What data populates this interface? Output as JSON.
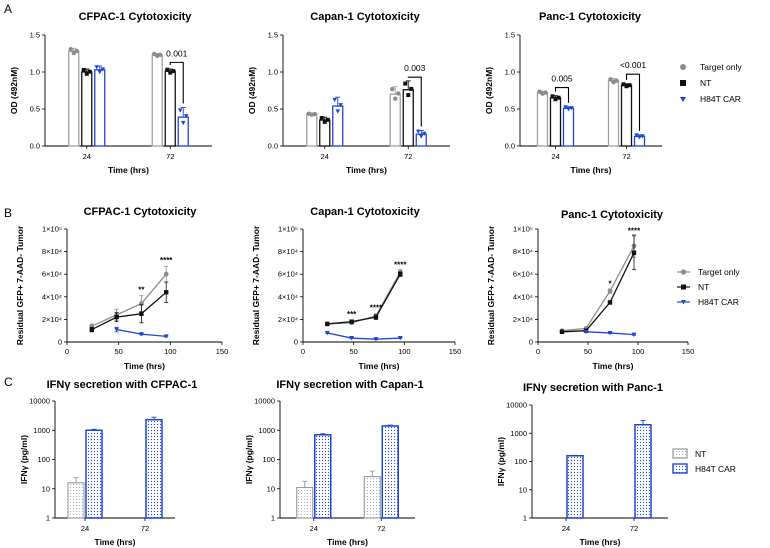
{
  "colors": {
    "target": "#8c8c8c",
    "nt": "#111111",
    "car": "#1f45d4",
    "nt_bar": "#9a9a9a"
  },
  "panels": {
    "a": "A",
    "b": "B",
    "c": "C"
  },
  "legend_ab": {
    "target": "Target only",
    "nt": "NT",
    "car": "H84T CAR"
  },
  "legend_c": {
    "nt": "NT",
    "car": "H84T CAR"
  },
  "chart_data": [
    {
      "id": "A1",
      "type": "bar",
      "title": "CFPAC-1 Cytotoxicity",
      "xlabel": "Time (hrs)",
      "ylabel": "OD (492nM)",
      "categories": [
        "24",
        "72"
      ],
      "ylim": [
        0,
        1.5
      ],
      "yticks": [
        "0.0",
        "0.5",
        "1.0",
        "1.5"
      ],
      "series": [
        {
          "name": "Target only",
          "values": [
            1.28,
            1.23
          ],
          "err": [
            0.04,
            0.02
          ]
        },
        {
          "name": "NT",
          "values": [
            1.0,
            1.01
          ],
          "err": [
            0.04,
            0.03
          ]
        },
        {
          "name": "H84T CAR",
          "values": [
            1.03,
            0.39
          ],
          "err": [
            0.05,
            0.13
          ]
        }
      ],
      "annotations": [
        {
          "text": "0.001",
          "category": "72",
          "y": 1.13
        }
      ]
    },
    {
      "id": "A2",
      "type": "bar",
      "title": "Capan-1 Cytotoxicity",
      "xlabel": "Time (hrs)",
      "ylabel": "OD (492nM)",
      "categories": [
        "24",
        "72"
      ],
      "ylim": [
        0,
        1.5
      ],
      "yticks": [
        "0.0",
        "0.5",
        "1.0",
        "1.5"
      ],
      "series": [
        {
          "name": "Target only",
          "values": [
            0.43,
            0.7
          ],
          "err": [
            0.01,
            0.1
          ]
        },
        {
          "name": "NT",
          "values": [
            0.35,
            0.76
          ],
          "err": [
            0.04,
            0.12
          ]
        },
        {
          "name": "H84T CAR",
          "values": [
            0.54,
            0.16
          ],
          "err": [
            0.12,
            0.05
          ]
        }
      ],
      "annotations": [
        {
          "text": "0.003",
          "category": "72",
          "y": 0.93
        }
      ]
    },
    {
      "id": "A3",
      "type": "bar",
      "title": "Panc-1 Cytotoxicity",
      "xlabel": "Time (hrs)",
      "ylabel": "OD (492nM)",
      "categories": [
        "24",
        "72"
      ],
      "ylim": [
        0,
        1.5
      ],
      "yticks": [
        "0.0",
        "0.5",
        "1.0",
        "1.5"
      ],
      "series": [
        {
          "name": "Target only",
          "values": [
            0.72,
            0.88
          ],
          "err": [
            0.02,
            0.03
          ]
        },
        {
          "name": "NT",
          "values": [
            0.65,
            0.82
          ],
          "err": [
            0.03,
            0.02
          ]
        },
        {
          "name": "H84T CAR",
          "values": [
            0.51,
            0.13
          ],
          "err": [
            0.02,
            0.02
          ]
        }
      ],
      "annotations": [
        {
          "text": "0.005",
          "category": "24",
          "y": 0.79
        },
        {
          "text": "<0.001",
          "category": "72",
          "y": 0.97
        }
      ]
    },
    {
      "id": "B1",
      "type": "line",
      "title": "CFPAC-1 Cytotoxicity",
      "xlabel": "Time (hrs)",
      "ylabel": "Residual GFP+ 7-AAD- Tumor",
      "x": [
        24,
        48,
        72,
        96
      ],
      "xlim": [
        0,
        150
      ],
      "xticks": [
        "0",
        "50",
        "100",
        "150"
      ],
      "ylim": [
        0,
        100000
      ],
      "yticks": [
        "0",
        "2×10⁴",
        "4×10⁴",
        "6×10⁴",
        "8×10⁴",
        "1×10⁵"
      ],
      "series": [
        {
          "name": "Target only",
          "values": [
            14000,
            24000,
            34000,
            60000
          ],
          "err": [
            2000,
            5000,
            7000,
            7000
          ]
        },
        {
          "name": "NT",
          "values": [
            11000,
            22000,
            25000,
            44000
          ],
          "err": [
            2000,
            4000,
            8000,
            9000
          ]
        },
        {
          "name": "H84T CAR",
          "values": [
            null,
            11000,
            7000,
            5000
          ],
          "err": [
            0,
            2000,
            800,
            600
          ]
        }
      ],
      "annotations": [
        {
          "text": "**",
          "x": 72,
          "y": 44000
        },
        {
          "text": "****",
          "x": 96,
          "y": 70000
        }
      ]
    },
    {
      "id": "B2",
      "type": "line",
      "title": "Capan-1 Cytotoxicity",
      "xlabel": "Time (hrs)",
      "ylabel": "Residual GFP+ 7-AAD- Tumor",
      "x": [
        24,
        48,
        72,
        96
      ],
      "xlim": [
        0,
        150
      ],
      "xticks": [
        "0",
        "50",
        "100",
        "150"
      ],
      "ylim": [
        0,
        100000
      ],
      "yticks": [
        "0",
        "2×10⁴",
        "4×10⁴",
        "6×10⁴",
        "8×10⁴",
        "1×10⁵"
      ],
      "series": [
        {
          "name": "Target only",
          "values": [
            16000,
            17000,
            23000,
            62000
          ],
          "err": [
            1000,
            1000,
            2000,
            2000
          ]
        },
        {
          "name": "NT",
          "values": [
            16000,
            18000,
            22000,
            60000
          ],
          "err": [
            1000,
            1000,
            2000,
            2000
          ]
        },
        {
          "name": "H84T CAR",
          "values": [
            8000,
            3500,
            2500,
            3500
          ],
          "err": [
            500,
            500,
            400,
            400
          ]
        }
      ],
      "annotations": [
        {
          "text": "***",
          "x": 48,
          "y": 22000
        },
        {
          "text": "****",
          "x": 72,
          "y": 28000
        },
        {
          "text": "****",
          "x": 96,
          "y": 66000
        }
      ]
    },
    {
      "id": "B3",
      "type": "line",
      "title": "Panc-1 Cytotoxicity",
      "xlabel": "Time (hrs)",
      "ylabel": "Residual GFP+ 7-AAD- Tumor",
      "x": [
        24,
        48,
        72,
        96
      ],
      "xlim": [
        0,
        150
      ],
      "xticks": [
        "0",
        "50",
        "100",
        "150"
      ],
      "ylim": [
        0,
        100000
      ],
      "yticks": [
        "0",
        "2×10⁴",
        "4×10⁴",
        "6×10⁴",
        "8×10⁴",
        "1×10⁵"
      ],
      "series": [
        {
          "name": "Target only",
          "values": [
            10000,
            12000,
            45000,
            85000
          ],
          "err": [
            1000,
            1000,
            2000,
            10000
          ]
        },
        {
          "name": "NT",
          "values": [
            9000,
            10000,
            35000,
            79000
          ],
          "err": [
            1000,
            1000,
            1500,
            15000
          ]
        },
        {
          "name": "H84T CAR",
          "values": [
            null,
            9000,
            8000,
            6500
          ],
          "err": [
            0,
            500,
            500,
            500
          ]
        }
      ],
      "annotations": [
        {
          "text": "*",
          "x": 72,
          "y": 49000
        },
        {
          "text": "****",
          "x": 96,
          "y": 96000
        }
      ]
    },
    {
      "id": "C1",
      "type": "bar",
      "yscale": "log",
      "title": "IFNγ secretion with CFPAC-1",
      "xlabel": "Time (hrs)",
      "ylabel": "IFNγ (pg/ml)",
      "categories": [
        "24",
        "72"
      ],
      "ylim": [
        1,
        10000
      ],
      "yticks": [
        "1",
        "10",
        "100",
        "1000",
        "10000"
      ],
      "series": [
        {
          "name": "NT",
          "values": [
            16,
            null
          ],
          "err": [
            8,
            0
          ]
        },
        {
          "name": "H84T CAR",
          "values": [
            1000,
            2300
          ],
          "err": [
            80,
            500
          ]
        }
      ]
    },
    {
      "id": "C2",
      "type": "bar",
      "yscale": "log",
      "title": "IFNγ secretion with Capan-1",
      "xlabel": "Time (hrs)",
      "ylabel": "IFNγ (pg/ml)",
      "categories": [
        "24",
        "72"
      ],
      "ylim": [
        1,
        10000
      ],
      "yticks": [
        "1",
        "10",
        "100",
        "1000",
        "10000"
      ],
      "series": [
        {
          "name": "NT",
          "values": [
            11,
            26
          ],
          "err": [
            7,
            14
          ]
        },
        {
          "name": "H84T CAR",
          "values": [
            700,
            1400
          ],
          "err": [
            60,
            100
          ]
        }
      ]
    },
    {
      "id": "C3",
      "type": "bar",
      "yscale": "log",
      "title": "IFNγ secretion with Panc-1",
      "xlabel": "Time (hrs)",
      "ylabel": "IFNγ (pg/ml)",
      "categories": [
        "24",
        "72"
      ],
      "ylim": [
        1,
        10000
      ],
      "yticks": [
        "1",
        "10",
        "100",
        "1000",
        "10000"
      ],
      "series": [
        {
          "name": "NT",
          "values": [
            null,
            null
          ],
          "err": [
            0,
            0
          ]
        },
        {
          "name": "H84T CAR",
          "values": [
            160,
            2000
          ],
          "err": [
            5,
            800
          ]
        }
      ]
    }
  ]
}
